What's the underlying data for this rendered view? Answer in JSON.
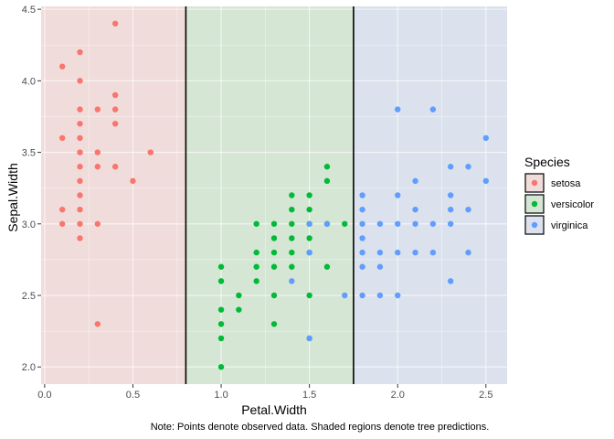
{
  "chart_data": {
    "type": "scatter",
    "xlabel": "Petal.Width",
    "ylabel": "Sepal.Width",
    "xlim": [
      -0.02,
      2.62
    ],
    "ylim": [
      1.88,
      4.52
    ],
    "x_ticks": [
      0.0,
      0.5,
      1.0,
      1.5,
      2.0,
      2.5
    ],
    "x_tick_labels": [
      "0.0",
      "0.5",
      "1.0",
      "1.5",
      "2.0",
      "2.5"
    ],
    "y_ticks": [
      2.0,
      2.5,
      3.0,
      3.5,
      4.0,
      4.5
    ],
    "y_tick_labels": [
      "2.0",
      "2.5",
      "3.0",
      "3.5",
      "4.0",
      "4.5"
    ],
    "grid": true,
    "legend": {
      "title": "Species",
      "position": "right",
      "entries": [
        {
          "label": "setosa",
          "color": "#F8766D",
          "fill": "#F0DCDA"
        },
        {
          "label": "versicolor",
          "color": "#00BA38",
          "fill": "#D5E6D5"
        },
        {
          "label": "virginica",
          "color": "#619CFF",
          "fill": "#DBE2ED"
        }
      ]
    },
    "regions": [
      {
        "species": "setosa",
        "x_from": -0.02,
        "x_to": 0.8,
        "color": "#F0DCDA"
      },
      {
        "species": "versicolor",
        "x_from": 0.8,
        "x_to": 1.75,
        "color": "#D5E6D5"
      },
      {
        "species": "virginica",
        "x_from": 1.75,
        "x_to": 2.62,
        "color": "#DBE2ED"
      }
    ],
    "split_lines": [
      0.8,
      1.75
    ],
    "series": [
      {
        "name": "setosa",
        "color": "#F8766D",
        "points": [
          [
            0.1,
            4.1
          ],
          [
            0.1,
            3.6
          ],
          [
            0.1,
            3.1
          ],
          [
            0.1,
            3.0
          ],
          [
            0.2,
            4.2
          ],
          [
            0.2,
            4.0
          ],
          [
            0.2,
            3.8
          ],
          [
            0.2,
            3.7
          ],
          [
            0.2,
            3.6
          ],
          [
            0.2,
            3.5
          ],
          [
            0.2,
            3.4
          ],
          [
            0.2,
            3.3
          ],
          [
            0.2,
            3.2
          ],
          [
            0.2,
            3.1
          ],
          [
            0.2,
            3.0
          ],
          [
            0.2,
            2.9
          ],
          [
            0.3,
            3.8
          ],
          [
            0.3,
            3.5
          ],
          [
            0.3,
            3.4
          ],
          [
            0.3,
            3.0
          ],
          [
            0.3,
            2.3
          ],
          [
            0.4,
            4.4
          ],
          [
            0.4,
            3.9
          ],
          [
            0.4,
            3.8
          ],
          [
            0.4,
            3.7
          ],
          [
            0.4,
            3.4
          ],
          [
            0.5,
            3.3
          ],
          [
            0.6,
            3.5
          ]
        ]
      },
      {
        "name": "versicolor",
        "color": "#00BA38",
        "points": [
          [
            1.0,
            2.7
          ],
          [
            1.0,
            2.6
          ],
          [
            1.0,
            2.4
          ],
          [
            1.0,
            2.3
          ],
          [
            1.0,
            2.2
          ],
          [
            1.0,
            2.0
          ],
          [
            1.1,
            2.5
          ],
          [
            1.1,
            2.4
          ],
          [
            1.2,
            3.0
          ],
          [
            1.2,
            2.8
          ],
          [
            1.2,
            2.7
          ],
          [
            1.2,
            2.6
          ],
          [
            1.3,
            3.0
          ],
          [
            1.3,
            2.9
          ],
          [
            1.3,
            2.8
          ],
          [
            1.3,
            2.7
          ],
          [
            1.3,
            2.5
          ],
          [
            1.3,
            2.3
          ],
          [
            1.4,
            3.2
          ],
          [
            1.4,
            3.1
          ],
          [
            1.4,
            3.0
          ],
          [
            1.4,
            2.9
          ],
          [
            1.4,
            2.8
          ],
          [
            1.4,
            2.7
          ],
          [
            1.5,
            3.2
          ],
          [
            1.5,
            3.1
          ],
          [
            1.5,
            3.0
          ],
          [
            1.5,
            2.9
          ],
          [
            1.5,
            2.8
          ],
          [
            1.5,
            2.5
          ],
          [
            1.5,
            2.2
          ],
          [
            1.6,
            3.4
          ],
          [
            1.6,
            3.3
          ],
          [
            1.6,
            3.0
          ],
          [
            1.6,
            2.7
          ],
          [
            1.7,
            3.0
          ]
        ]
      },
      {
        "name": "virginica",
        "color": "#619CFF",
        "points": [
          [
            1.4,
            2.6
          ],
          [
            1.5,
            3.0
          ],
          [
            1.5,
            2.8
          ],
          [
            1.5,
            2.2
          ],
          [
            1.6,
            3.0
          ],
          [
            1.7,
            2.5
          ],
          [
            1.8,
            3.2
          ],
          [
            1.8,
            3.1
          ],
          [
            1.8,
            3.0
          ],
          [
            1.8,
            2.9
          ],
          [
            1.8,
            2.8
          ],
          [
            1.8,
            2.7
          ],
          [
            1.8,
            2.5
          ],
          [
            1.9,
            3.0
          ],
          [
            1.9,
            2.8
          ],
          [
            1.9,
            2.7
          ],
          [
            1.9,
            2.5
          ],
          [
            2.0,
            3.8
          ],
          [
            2.0,
            3.2
          ],
          [
            2.0,
            3.0
          ],
          [
            2.0,
            2.8
          ],
          [
            2.0,
            2.5
          ],
          [
            2.1,
            3.3
          ],
          [
            2.1,
            3.1
          ],
          [
            2.1,
            3.0
          ],
          [
            2.1,
            2.8
          ],
          [
            2.2,
            3.8
          ],
          [
            2.2,
            3.0
          ],
          [
            2.2,
            2.8
          ],
          [
            2.3,
            3.4
          ],
          [
            2.3,
            3.2
          ],
          [
            2.3,
            3.1
          ],
          [
            2.3,
            3.0
          ],
          [
            2.3,
            2.6
          ],
          [
            2.4,
            3.4
          ],
          [
            2.4,
            3.1
          ],
          [
            2.4,
            2.8
          ],
          [
            2.5,
            3.6
          ],
          [
            2.5,
            3.3
          ]
        ]
      }
    ]
  },
  "caption": "Note: Points denote observed data. Shaded regions denote tree predictions."
}
